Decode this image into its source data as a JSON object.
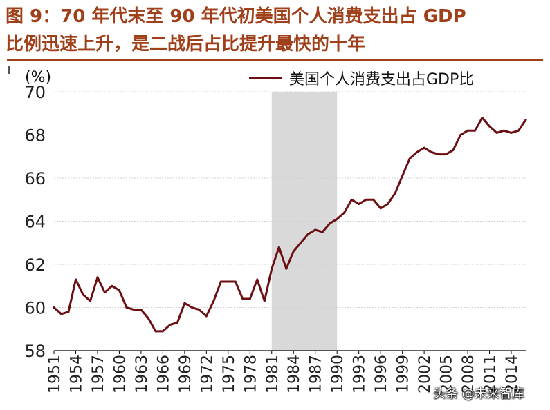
{
  "figure": {
    "title_line1": "图 9：70 年代末至 90 年代初美国个人消费支出占 GDP",
    "title_line2": "比例迅速上升，是二战后占比提升最快的十年"
  },
  "watermark": "头条 @未来智库",
  "colors": {
    "title": "#a0401b",
    "series": "#6b0f12",
    "highlight": "#d9d9d9"
  },
  "chart_data": {
    "type": "line",
    "unit_label": "(%)",
    "ylim": [
      58,
      70
    ],
    "yticks": [
      58,
      60,
      62,
      64,
      66,
      68,
      70
    ],
    "xlim": [
      1951,
      2016
    ],
    "xtick_labels": [
      "1951",
      "1954",
      "1957",
      "1960",
      "1963",
      "1966",
      "1969",
      "1972",
      "1975",
      "1978",
      "1981",
      "1984",
      "1987",
      "1990",
      "1993",
      "1996",
      "1999",
      "2002",
      "2005",
      "2008",
      "2011",
      "2014"
    ],
    "grid": true,
    "legend_position": "top-right",
    "highlight_span": [
      1981,
      1990
    ],
    "series": [
      {
        "name": "美国个人消费支出占GDP比",
        "x": [
          1951,
          1952,
          1953,
          1954,
          1955,
          1956,
          1957,
          1958,
          1959,
          1960,
          1961,
          1962,
          1963,
          1964,
          1965,
          1966,
          1967,
          1968,
          1969,
          1970,
          1971,
          1972,
          1973,
          1974,
          1975,
          1976,
          1977,
          1978,
          1979,
          1980,
          1981,
          1982,
          1983,
          1984,
          1985,
          1986,
          1987,
          1988,
          1989,
          1990,
          1991,
          1992,
          1993,
          1994,
          1995,
          1996,
          1997,
          1998,
          1999,
          2000,
          2001,
          2002,
          2003,
          2004,
          2005,
          2006,
          2007,
          2008,
          2009,
          2010,
          2011,
          2012,
          2013,
          2014,
          2015,
          2016
        ],
        "values": [
          60.0,
          59.7,
          59.8,
          61.3,
          60.6,
          60.3,
          61.4,
          60.7,
          61.0,
          60.8,
          60.0,
          59.9,
          59.9,
          59.5,
          58.9,
          58.9,
          59.2,
          59.3,
          60.2,
          60.0,
          59.9,
          59.6,
          60.3,
          61.2,
          61.2,
          61.2,
          60.4,
          60.4,
          61.3,
          60.3,
          61.8,
          62.8,
          61.8,
          62.6,
          63.0,
          63.4,
          63.6,
          63.5,
          63.9,
          64.1,
          64.4,
          65.0,
          64.8,
          65.0,
          65.0,
          64.6,
          64.8,
          65.3,
          66.1,
          66.9,
          67.2,
          67.4,
          67.2,
          67.1,
          67.1,
          67.3,
          68.0,
          68.2,
          68.2,
          68.8,
          68.4,
          68.1,
          68.2,
          68.1,
          68.2,
          68.7
        ]
      }
    ]
  }
}
